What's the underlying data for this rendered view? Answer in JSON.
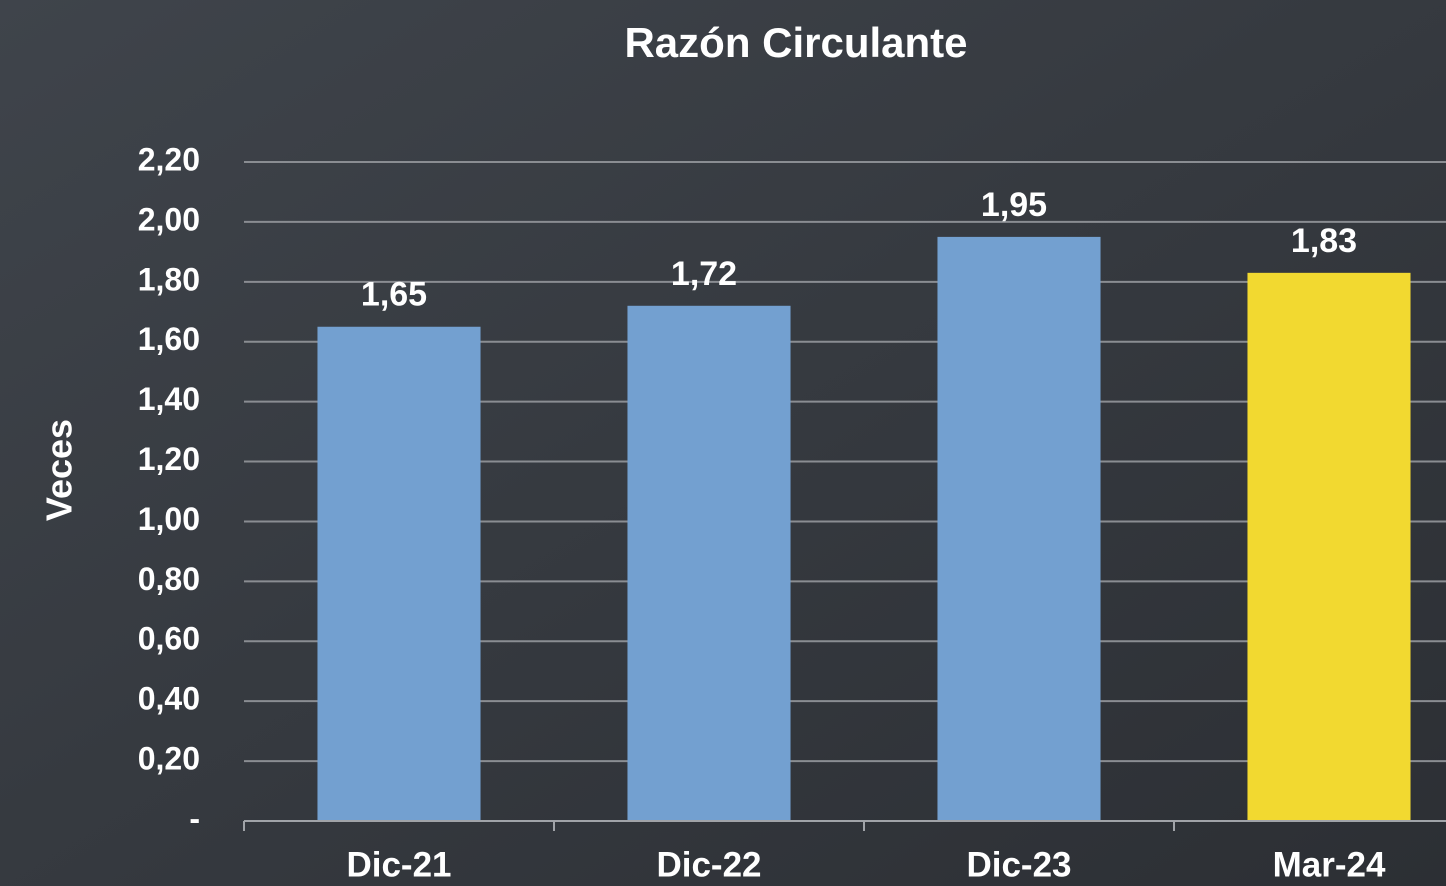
{
  "chart_data": {
    "type": "bar",
    "title": "Razón Circulante",
    "y_label": "Veces",
    "categories": [
      "Dic-21",
      "Dic-22",
      "Dic-23",
      "Mar-24"
    ],
    "values": [
      1.65,
      1.72,
      1.95,
      1.83
    ],
    "value_labels": [
      "1,65",
      "1,72",
      "1,95",
      "1,83"
    ],
    "colors": [
      "#73a0d0",
      "#73a0d0",
      "#73a0d0",
      "#f2d930"
    ],
    "ylim": [
      0,
      2.2
    ],
    "yticks": [
      {
        "value": 0,
        "label": "-"
      },
      {
        "value": 0.2,
        "label": "0,20"
      },
      {
        "value": 0.4,
        "label": "0,40"
      },
      {
        "value": 0.6,
        "label": "0,60"
      },
      {
        "value": 0.8,
        "label": "0,80"
      },
      {
        "value": 1,
        "label": "1,00"
      },
      {
        "value": 1.2,
        "label": "1,20"
      },
      {
        "value": 1.4,
        "label": "1,40"
      },
      {
        "value": 1.6,
        "label": "1,60"
      },
      {
        "value": 1.8,
        "label": "1,80"
      },
      {
        "value": 2,
        "label": "2,00"
      },
      {
        "value": 2.2,
        "label": "2,20"
      }
    ],
    "grid": true
  }
}
